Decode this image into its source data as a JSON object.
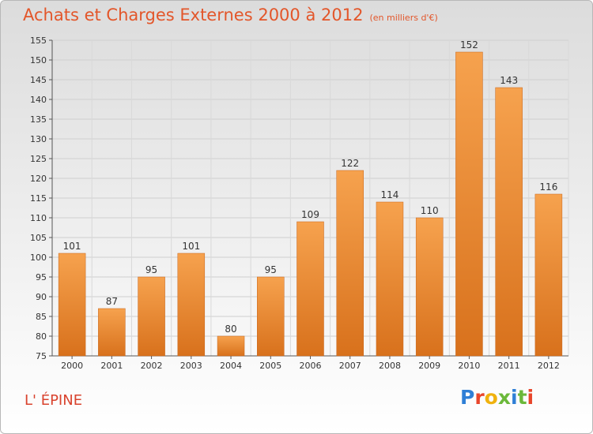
{
  "chart_data": {
    "type": "bar",
    "title": "Achats et Charges Externes 2000 à 2012",
    "subtitle": "(en milliers d'€)",
    "categories": [
      "2000",
      "2001",
      "2002",
      "2003",
      "2004",
      "2005",
      "2006",
      "2007",
      "2008",
      "2009",
      "2010",
      "2011",
      "2012"
    ],
    "values": [
      101,
      87,
      95,
      101,
      80,
      95,
      109,
      122,
      114,
      110,
      152,
      143,
      116
    ],
    "ylim": [
      75,
      155
    ],
    "yticks": [
      75,
      80,
      85,
      90,
      95,
      100,
      105,
      110,
      115,
      120,
      125,
      130,
      135,
      140,
      145,
      150,
      155
    ],
    "grid": true,
    "bar_color_top": "#f6a24e",
    "bar_color_bottom": "#d8711c",
    "xlabel": "",
    "ylabel": ""
  },
  "footer": {
    "commune": "L' ÉPINE",
    "logo": "Proxiti"
  },
  "colors": {
    "title": "#e3562a",
    "commune": "#d9432e"
  }
}
